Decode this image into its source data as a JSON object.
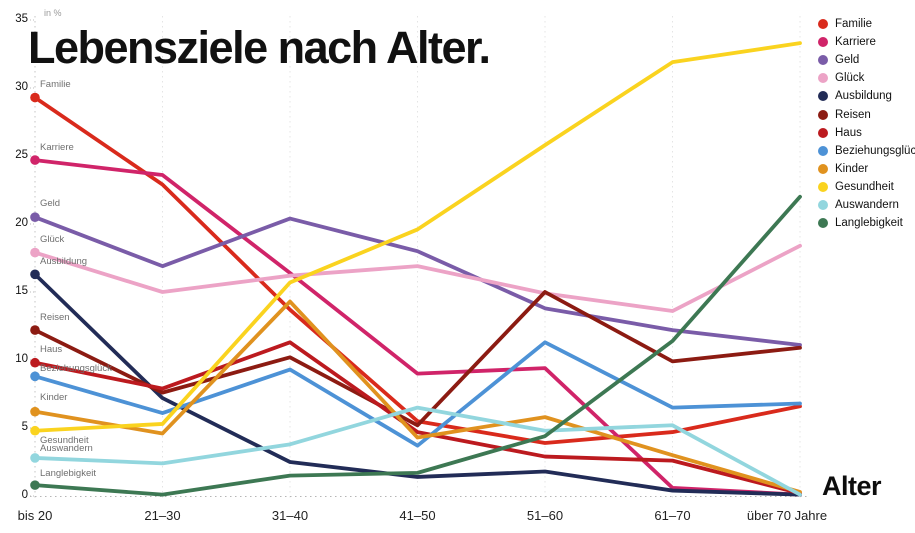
{
  "title": "Lebensziele nach Alter.",
  "chart_data": {
    "type": "line",
    "title": "Lebensziele nach Alter.",
    "unit_label": "in %",
    "xlabel": "Alter",
    "ylabel": "in %",
    "ylim": [
      0,
      35
    ],
    "yticks": [
      0,
      5,
      10,
      15,
      20,
      25,
      30,
      35
    ],
    "grid": "dotted-vertical",
    "legend_position": "right",
    "categories": [
      "bis 20",
      "21–30",
      "31–40",
      "41–50",
      "51–60",
      "61–70",
      "über 70 Jahre"
    ],
    "series": [
      {
        "name": "Familie",
        "color": "#d92a1c",
        "label_dy": -14,
        "values": [
          29.3,
          22.9,
          13.7,
          5.5,
          3.9,
          4.7,
          6.6
        ]
      },
      {
        "name": "Karriere",
        "color": "#d02469",
        "label_dy": -13,
        "values": [
          24.7,
          23.6,
          16.4,
          9.0,
          9.4,
          0.6,
          0.1
        ]
      },
      {
        "name": "Geld",
        "color": "#7a5ca8",
        "label_dy": -14,
        "values": [
          20.5,
          16.9,
          20.4,
          18.0,
          13.8,
          12.2,
          11.1
        ]
      },
      {
        "name": "Glück",
        "color": "#eca3c6",
        "label_dy": -14,
        "values": [
          17.9,
          15.0,
          16.2,
          16.9,
          14.9,
          13.6,
          18.4
        ]
      },
      {
        "name": "Ausbildung",
        "color": "#222c57",
        "label_dy": -13,
        "values": [
          16.3,
          7.2,
          2.5,
          1.4,
          1.8,
          0.4,
          0.1
        ]
      },
      {
        "name": "Reisen",
        "color": "#8c1b12",
        "label_dy": -13,
        "values": [
          12.2,
          7.6,
          10.2,
          5.2,
          15.0,
          9.9,
          10.9
        ]
      },
      {
        "name": "Haus",
        "color": "#bc1a1f",
        "label_dy": -14,
        "values": [
          9.8,
          7.9,
          11.3,
          4.7,
          2.9,
          2.6,
          0.2
        ]
      },
      {
        "name": "Beziehungsglück",
        "color": "#4d92d6",
        "label_dy": -8,
        "values": [
          8.8,
          6.1,
          9.3,
          3.7,
          11.3,
          6.5,
          6.8
        ]
      },
      {
        "name": "Kinder",
        "color": "#e0921f",
        "label_dy": -15,
        "values": [
          6.2,
          4.6,
          14.3,
          4.3,
          5.8,
          3.0,
          0.3
        ]
      },
      {
        "name": "Gesundheit",
        "color": "#fad31f",
        "label_dy": 9,
        "values": [
          4.8,
          5.3,
          15.7,
          19.6,
          25.8,
          31.9,
          33.3
        ]
      },
      {
        "name": "Auswandern",
        "color": "#92d6de",
        "label_dy": -10,
        "values": [
          2.8,
          2.4,
          3.8,
          6.5,
          4.8,
          5.2,
          0.1
        ]
      },
      {
        "name": "Langlebigkeit",
        "color": "#3d7853",
        "label_dy": -12,
        "values": [
          0.8,
          0.1,
          1.5,
          1.7,
          4.4,
          11.4,
          22.0
        ]
      }
    ]
  }
}
